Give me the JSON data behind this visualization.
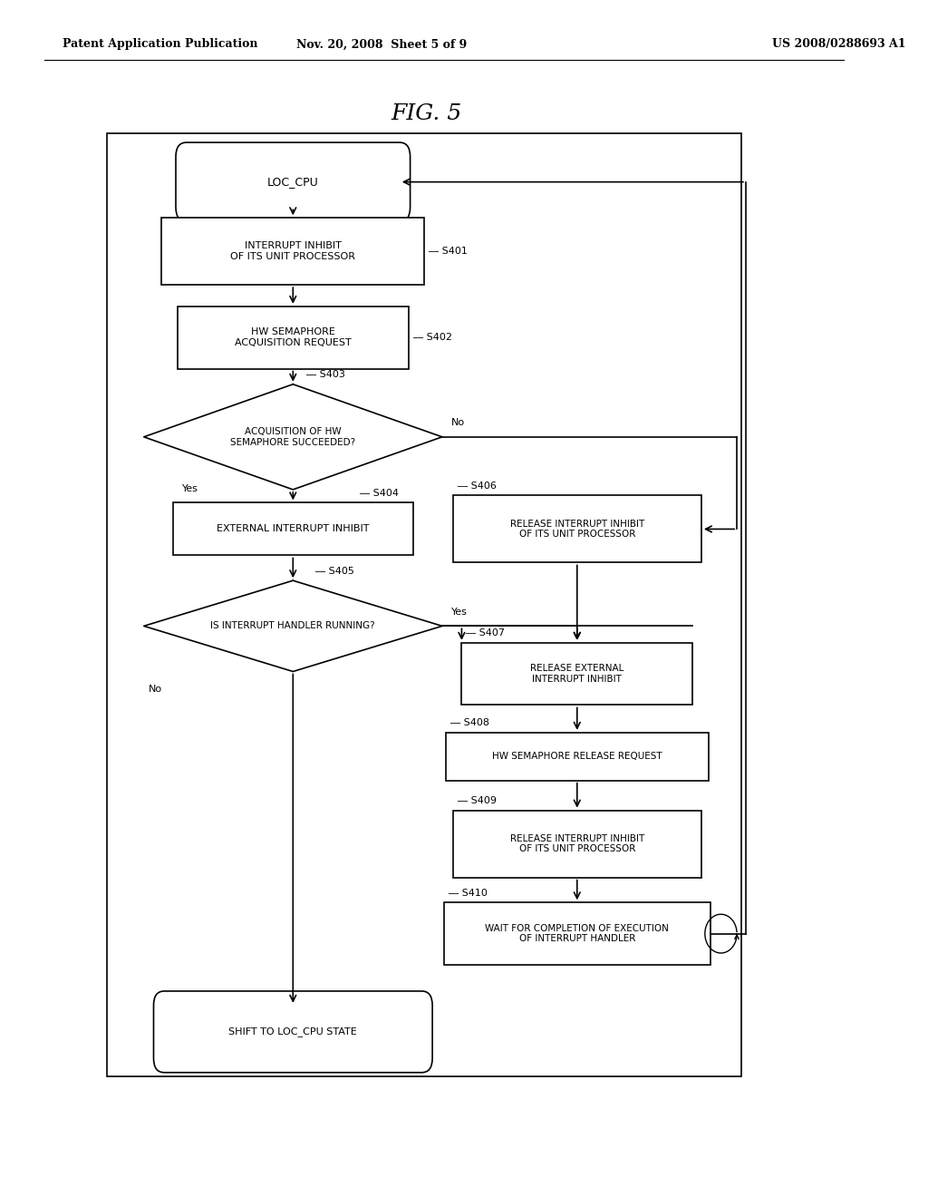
{
  "bg_color": "#ffffff",
  "header_left": "Patent Application Publication",
  "header_mid": "Nov. 20, 2008  Sheet 5 of 9",
  "header_right": "US 2008/0288693 A1",
  "fig_title": "FIG. 5"
}
